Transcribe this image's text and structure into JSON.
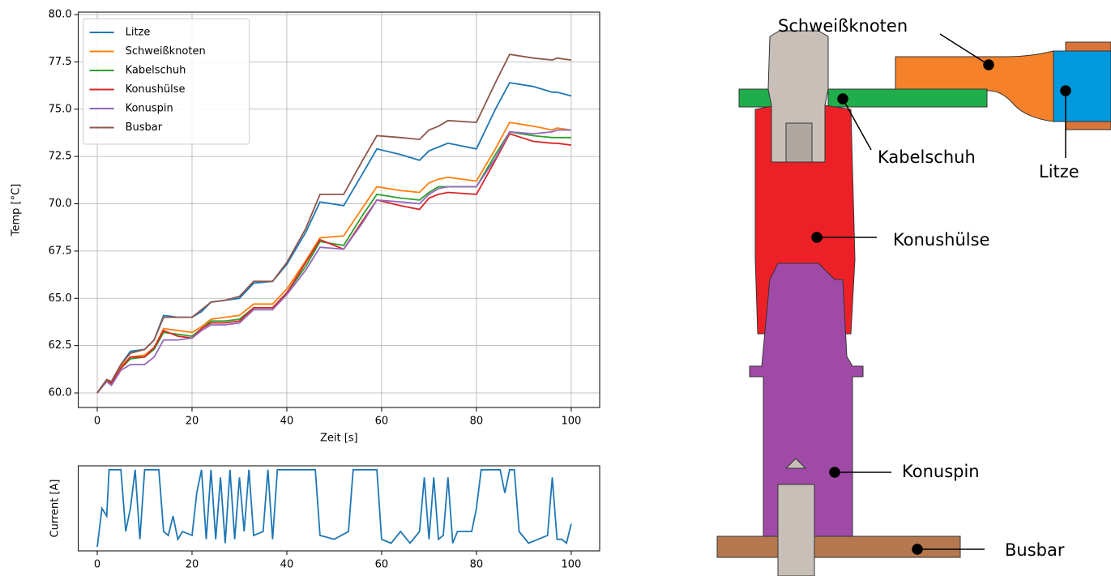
{
  "chart_data": [
    {
      "type": "line",
      "xlabel": "Zeit [s]",
      "ylabel": "Temp [°C]",
      "x": [
        0,
        2,
        3,
        5,
        7,
        10,
        12,
        14,
        17,
        20,
        22,
        24,
        27,
        30,
        33,
        37,
        40,
        44,
        47,
        52,
        56,
        59,
        64,
        68,
        70,
        72,
        74,
        80,
        84,
        87,
        92,
        96,
        97,
        100
      ],
      "series": [
        {
          "name": "Litze",
          "color": "#1f77b4",
          "values": [
            60,
            60.7,
            60.6,
            61.5,
            62.2,
            62.3,
            62.8,
            64.1,
            64.0,
            64.0,
            64.3,
            64.8,
            64.9,
            65.0,
            65.8,
            65.9,
            66.8,
            68.5,
            70.1,
            69.9,
            71.6,
            72.9,
            72.6,
            72.3,
            72.8,
            73.0,
            73.2,
            72.9,
            75.0,
            76.4,
            76.2,
            75.9,
            75.9,
            75.7
          ]
        },
        {
          "name": "Schweißknoten",
          "color": "#ff7f0e",
          "values": [
            60,
            60.7,
            60.5,
            61.4,
            61.9,
            62.0,
            62.4,
            63.4,
            63.3,
            63.2,
            63.5,
            63.9,
            64.0,
            64.1,
            64.7,
            64.7,
            65.5,
            67.0,
            68.2,
            68.3,
            69.8,
            70.9,
            70.7,
            70.6,
            71.1,
            71.3,
            71.4,
            71.2,
            72.9,
            74.3,
            74.1,
            73.9,
            74.0,
            73.9
          ]
        },
        {
          "name": "Kabelschuh",
          "color": "#2ca02c",
          "values": [
            60,
            60.7,
            60.5,
            61.3,
            61.8,
            61.9,
            62.3,
            63.2,
            63.1,
            63.0,
            63.4,
            63.8,
            63.8,
            63.9,
            64.5,
            64.5,
            65.3,
            66.7,
            68.0,
            67.8,
            69.4,
            70.5,
            70.3,
            70.2,
            70.6,
            70.9,
            70.9,
            70.9,
            72.6,
            73.8,
            73.6,
            73.5,
            73.5,
            73.5
          ]
        },
        {
          "name": "Konushülse",
          "color": "#d62728",
          "values": [
            60,
            60.7,
            60.5,
            61.3,
            61.9,
            61.9,
            62.4,
            63.3,
            63.0,
            62.9,
            63.4,
            63.7,
            63.7,
            63.8,
            64.5,
            64.5,
            65.3,
            66.9,
            68.1,
            67.6,
            69.1,
            70.2,
            69.9,
            69.7,
            70.3,
            70.5,
            70.6,
            70.5,
            72.3,
            73.7,
            73.3,
            73.2,
            73.2,
            73.1
          ]
        },
        {
          "name": "Konuspin",
          "color": "#9467bd",
          "values": [
            60,
            60.6,
            60.4,
            61.2,
            61.5,
            61.5,
            61.9,
            62.8,
            62.8,
            62.9,
            63.3,
            63.6,
            63.6,
            63.7,
            64.4,
            64.4,
            65.2,
            66.5,
            67.7,
            67.6,
            69.0,
            70.2,
            70.1,
            70.0,
            70.5,
            70.8,
            70.9,
            70.9,
            72.4,
            73.8,
            73.7,
            73.8,
            73.9,
            73.9
          ]
        },
        {
          "name": "Busbar",
          "color": "#8c564b",
          "values": [
            60,
            60.7,
            60.6,
            61.5,
            62.1,
            62.3,
            62.8,
            64.0,
            64.0,
            64.0,
            64.4,
            64.8,
            64.9,
            65.1,
            65.9,
            65.9,
            66.9,
            68.7,
            70.5,
            70.5,
            72.3,
            73.6,
            73.5,
            73.4,
            73.9,
            74.1,
            74.4,
            74.3,
            76.4,
            77.9,
            77.7,
            77.6,
            77.7,
            77.6
          ]
        }
      ],
      "xlim": [
        -4,
        106
      ],
      "xticks": [
        0,
        20,
        40,
        60,
        80,
        100
      ],
      "ylim": [
        59.23,
        80.13
      ],
      "yticks": [
        {
          "value": 60,
          "label": "60.0"
        },
        62.5,
        {
          "value": 65,
          "label": "65.0"
        },
        67.5,
        {
          "value": 70,
          "label": "70.0"
        },
        72.5,
        {
          "value": 75,
          "label": "75.0"
        },
        77.5,
        {
          "value": 80,
          "label": "80.0"
        }
      ],
      "grid": true,
      "legend": "upper-left"
    },
    {
      "type": "line",
      "ylabel": "Current [A]",
      "color": "#1f77b4",
      "x": [
        0,
        1,
        2,
        2.5,
        5,
        6,
        7,
        8,
        9,
        10,
        13,
        14,
        15,
        16,
        17,
        18,
        20,
        21,
        22,
        23,
        24,
        25,
        26,
        27,
        28,
        29,
        30,
        31,
        32,
        33,
        35,
        36,
        37,
        38,
        46,
        47,
        50,
        53,
        54,
        59,
        60,
        62,
        64,
        66,
        68,
        69,
        70,
        71,
        72,
        73,
        74,
        75,
        76,
        79,
        80,
        81,
        85,
        86,
        87,
        88,
        89,
        91,
        93,
        95,
        96,
        97,
        98,
        99,
        100
      ],
      "values": [
        0,
        0.5,
        0.4,
        1,
        1,
        0.2,
        0.5,
        1,
        0.1,
        1,
        1,
        0.2,
        0.15,
        0.4,
        0.1,
        0.2,
        0.15,
        0.7,
        1,
        0.1,
        1,
        0.1,
        0.9,
        0.05,
        1,
        0.1,
        0.9,
        0.2,
        1,
        0.15,
        0.2,
        1,
        0.1,
        1,
        1,
        0.15,
        0.1,
        0.2,
        1,
        1,
        0.1,
        0.05,
        0.2,
        0.05,
        0.2,
        0.9,
        0.1,
        0.9,
        0.1,
        0.15,
        0.9,
        0.05,
        0.2,
        0.2,
        0.5,
        1,
        1,
        0.7,
        1,
        1,
        0.2,
        0.05,
        0.1,
        0.15,
        0.9,
        0.1,
        0.1,
        0.05,
        0.3
      ],
      "xlim": [
        -4,
        106
      ],
      "xticks": [
        0,
        20,
        40,
        60,
        80,
        100
      ],
      "ylim": [
        -0.05,
        1.05
      ],
      "grid": false
    }
  ],
  "diagram": {
    "labels": [
      "Schweißknoten",
      "Kabelschuh",
      "Litze",
      "Konushülse",
      "Konuspin",
      "Busbar"
    ]
  }
}
